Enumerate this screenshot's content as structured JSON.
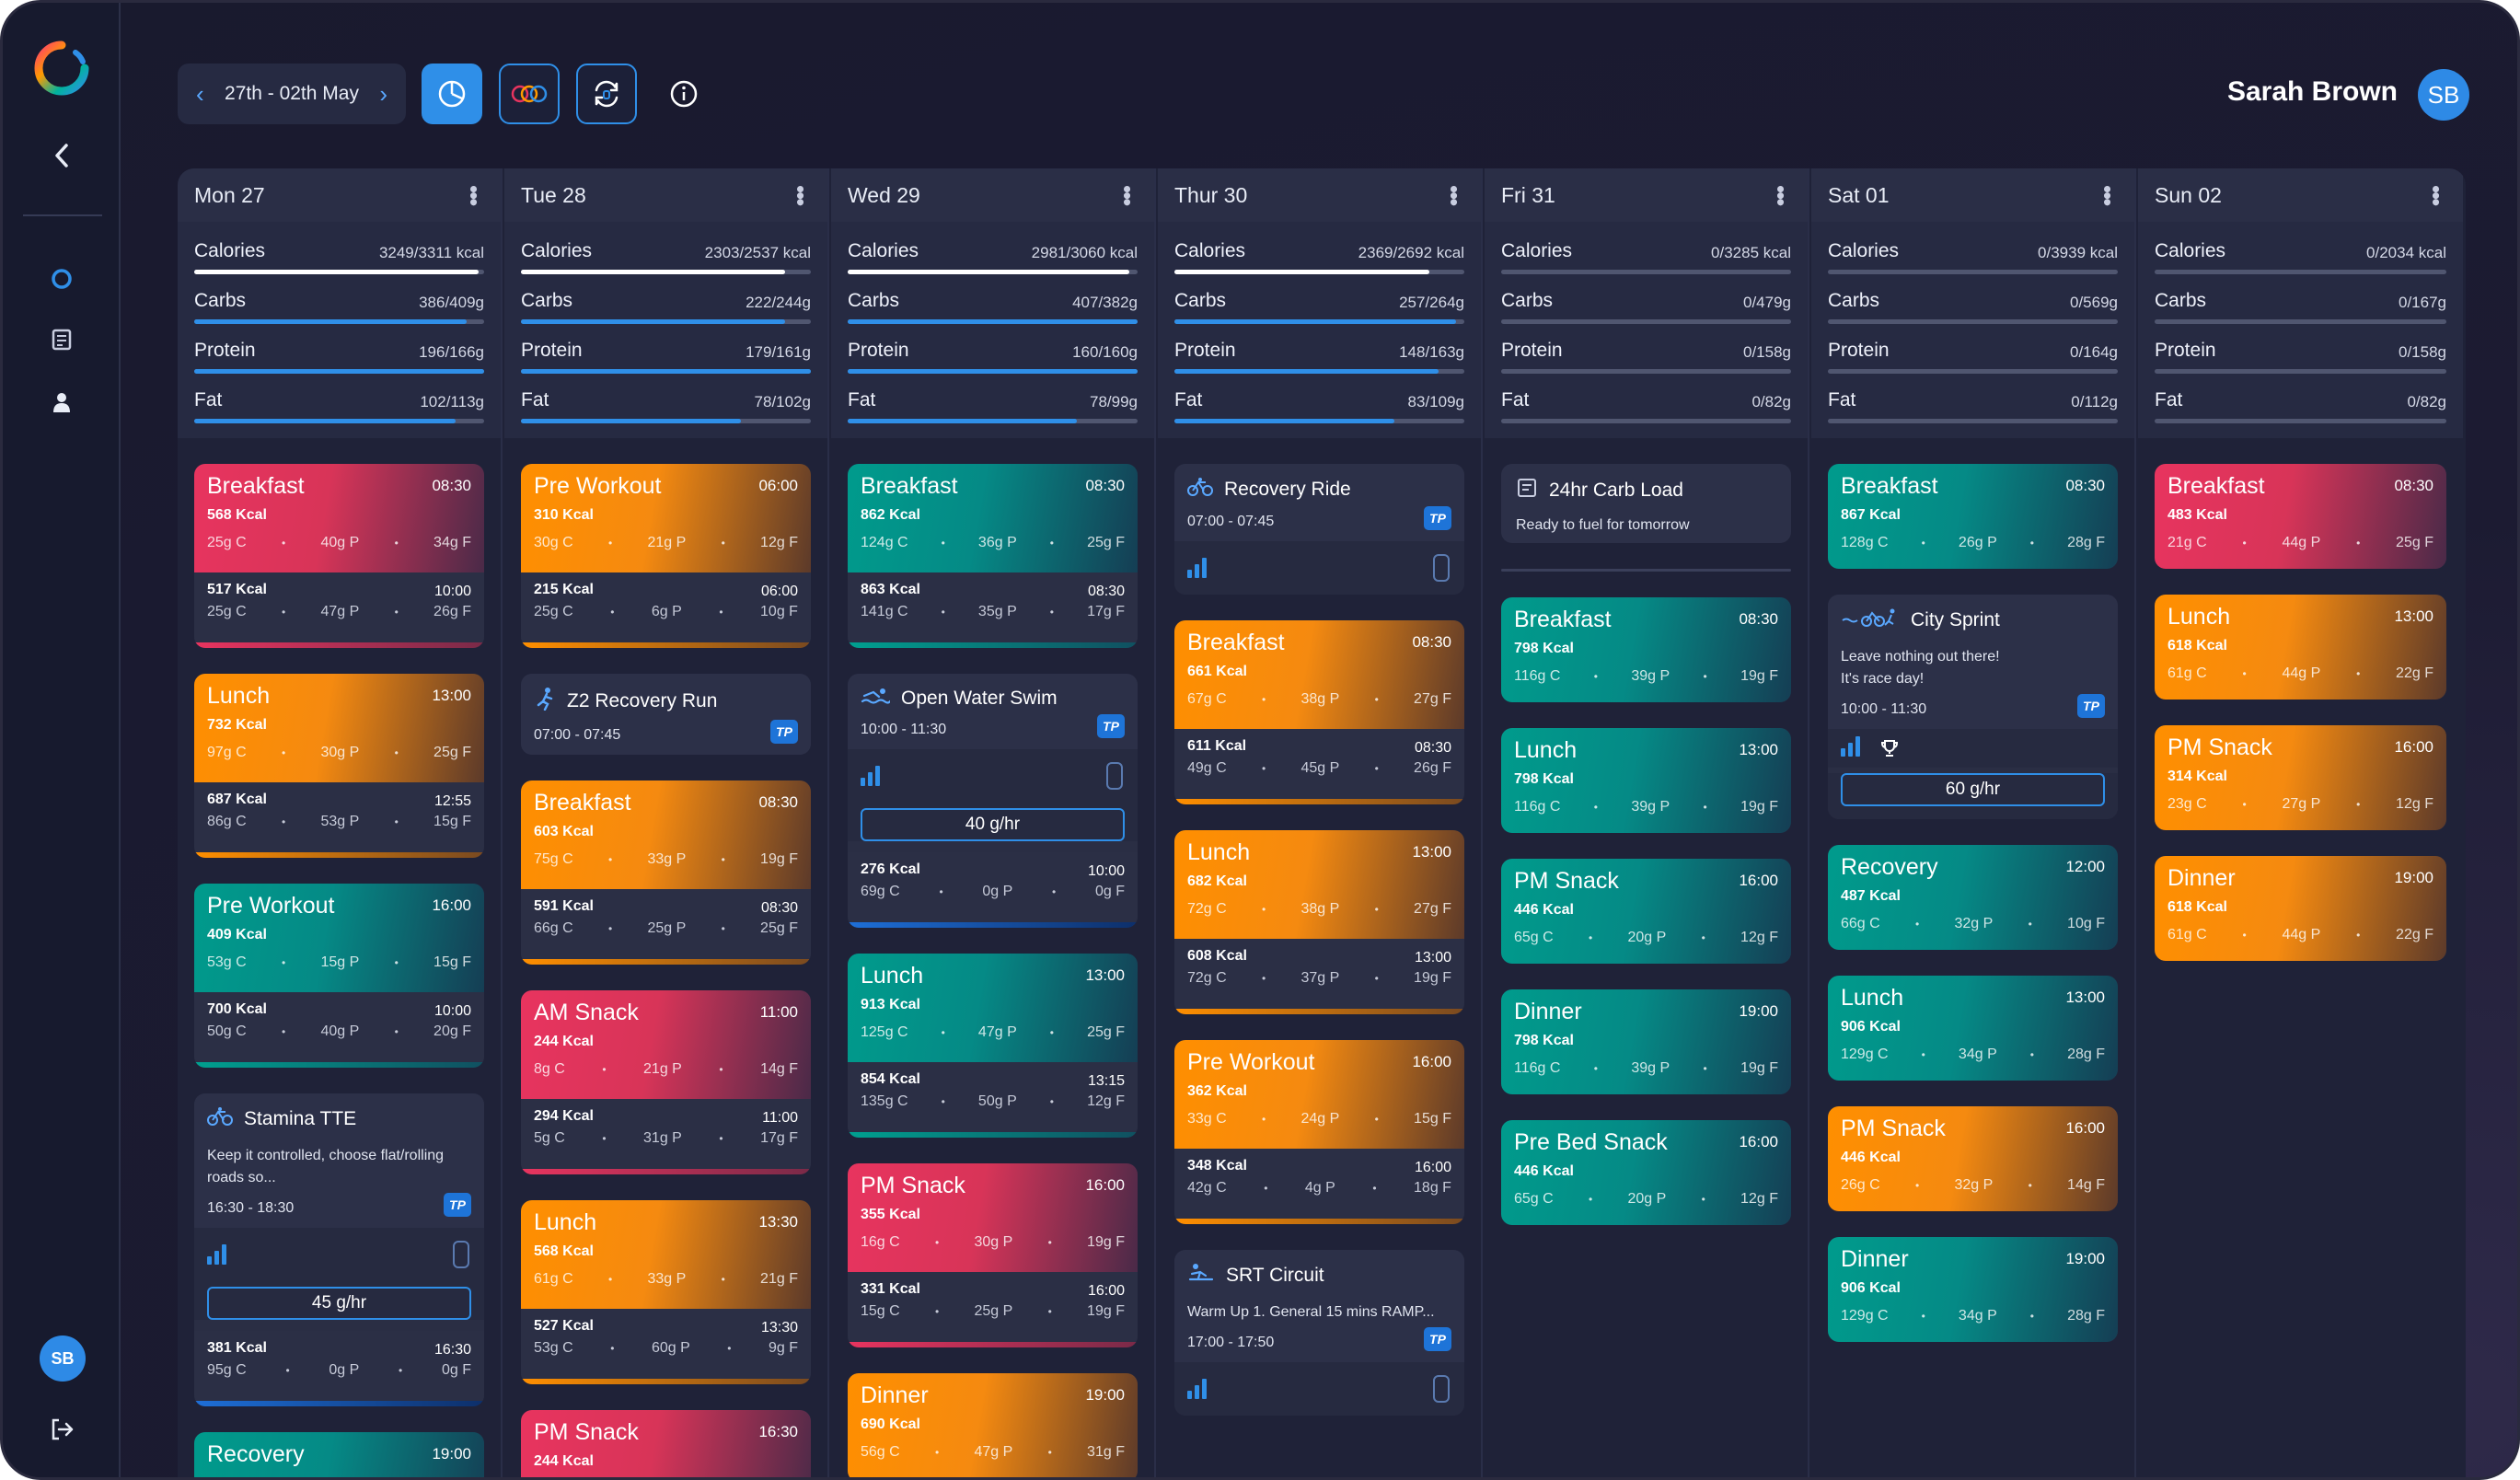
{
  "topbar": {
    "date_range": "27th - 02th May",
    "user_name": "Sarah Brown",
    "user_initials": "SB"
  },
  "sidebar": {
    "avatar_initials": "SB"
  },
  "colors": {
    "accent": "#2f8fe8",
    "red": "#e8345f",
    "orange": "#ff8f00",
    "teal": "#009b8c"
  },
  "days": [
    {
      "title": "Mon 27",
      "stats": [
        {
          "label": "Calories",
          "value": "3249/3311 kcal",
          "pct": 98,
          "color": "white"
        },
        {
          "label": "Carbs",
          "value": "386/409g",
          "pct": 94,
          "color": "blue"
        },
        {
          "label": "Protein",
          "value": "196/166g",
          "pct": 100,
          "color": "blue"
        },
        {
          "label": "Fat",
          "value": "102/113g",
          "pct": 90,
          "color": "blue"
        }
      ],
      "cards": [
        {
          "kind": "meal",
          "color": "red",
          "name": "Breakfast",
          "time": "08:30",
          "kcal": "568 Kcal",
          "c": "25g C",
          "p": "40g P",
          "f": "34g F",
          "kcal2": "517 Kcal",
          "time2": "10:00",
          "c2": "25g C",
          "p2": "47g P",
          "f2": "26g F"
        },
        {
          "kind": "meal",
          "color": "orange",
          "name": "Lunch",
          "time": "13:00",
          "kcal": "732 Kcal",
          "c": "97g C",
          "p": "30g P",
          "f": "25g F",
          "kcal2": "687 Kcal",
          "time2": "12:55",
          "c2": "86g C",
          "p2": "53g P",
          "f2": "15g F"
        },
        {
          "kind": "meal",
          "color": "teal",
          "name": "Pre Workout",
          "time": "16:00",
          "kcal": "409 Kcal",
          "c": "53g C",
          "p": "15g P",
          "f": "15g F",
          "kcal2": "700 Kcal",
          "time2": "10:00",
          "c2": "50g C",
          "p2": "40g P",
          "f2": "20g F"
        },
        {
          "kind": "workout",
          "icon": "bike",
          "title": "Stamina TTE",
          "desc": "Keep it controlled, choose flat/rolling roads so...",
          "time": "16:30 - 18:30",
          "gram": "45 g/hr",
          "kcal2": "381 Kcal",
          "time2": "16:30",
          "c2": "95g C",
          "p2": "0g P",
          "f2": "0g F"
        },
        {
          "kind": "partial",
          "color": "teal",
          "name": "Recovery",
          "time": "19:00"
        }
      ]
    },
    {
      "title": "Tue 28",
      "stats": [
        {
          "label": "Calories",
          "value": "2303/2537 kcal",
          "pct": 91,
          "color": "white"
        },
        {
          "label": "Carbs",
          "value": "222/244g",
          "pct": 91,
          "color": "blue"
        },
        {
          "label": "Protein",
          "value": "179/161g",
          "pct": 100,
          "color": "blue"
        },
        {
          "label": "Fat",
          "value": "78/102g",
          "pct": 76,
          "color": "blue"
        }
      ],
      "cards": [
        {
          "kind": "meal",
          "color": "orange",
          "name": "Pre Workout",
          "time": "06:00",
          "kcal": "310 Kcal",
          "c": "30g C",
          "p": "21g P",
          "f": "12g F",
          "kcal2": "215 Kcal",
          "time2": "06:00",
          "c2": "25g C",
          "p2": "6g P",
          "f2": "10g F"
        },
        {
          "kind": "simple",
          "icon": "run",
          "title": "Z2 Recovery Run",
          "time": "07:00 - 07:45"
        },
        {
          "kind": "meal",
          "color": "orange",
          "name": "Breakfast",
          "time": "08:30",
          "kcal": "603 Kcal",
          "c": "75g C",
          "p": "33g P",
          "f": "19g F",
          "kcal2": "591 Kcal",
          "time2": "08:30",
          "c2": "66g C",
          "p2": "25g P",
          "f2": "25g F"
        },
        {
          "kind": "meal",
          "color": "red",
          "name": "AM Snack",
          "time": "11:00",
          "kcal": "244 Kcal",
          "c": "8g C",
          "p": "21g P",
          "f": "14g F",
          "kcal2": "294 Kcal",
          "time2": "11:00",
          "c2": "5g C",
          "p2": "31g P",
          "f2": "17g F"
        },
        {
          "kind": "meal",
          "color": "orange",
          "name": "Lunch",
          "time": "13:30",
          "kcal": "568 Kcal",
          "c": "61g C",
          "p": "33g P",
          "f": "21g F",
          "kcal2": "527 Kcal",
          "time2": "13:30",
          "c2": "53g C",
          "p2": "60g P",
          "f2": "9g F"
        },
        {
          "kind": "partial",
          "color": "red",
          "name": "PM Snack",
          "time": "16:30",
          "kcal": "244 Kcal"
        }
      ]
    },
    {
      "title": "Wed 29",
      "stats": [
        {
          "label": "Calories",
          "value": "2981/3060 kcal",
          "pct": 97,
          "color": "white"
        },
        {
          "label": "Carbs",
          "value": "407/382g",
          "pct": 100,
          "color": "blue"
        },
        {
          "label": "Protein",
          "value": "160/160g",
          "pct": 100,
          "color": "blue"
        },
        {
          "label": "Fat",
          "value": "78/99g",
          "pct": 79,
          "color": "blue"
        }
      ],
      "cards": [
        {
          "kind": "meal",
          "color": "teal",
          "name": "Breakfast",
          "time": "08:30",
          "kcal": "862 Kcal",
          "c": "124g C",
          "p": "36g P",
          "f": "25g F",
          "kcal2": "863 Kcal",
          "time2": "08:30",
          "c2": "141g C",
          "p2": "35g P",
          "f2": "17g F"
        },
        {
          "kind": "swim",
          "icon": "swim",
          "title": "Open Water Swim",
          "time": "10:00 - 11:30",
          "gram": "40 g/hr",
          "kcal2": "276 Kcal",
          "time2": "10:00",
          "c2": "69g C",
          "p2": "0g P",
          "f2": "0g F"
        },
        {
          "kind": "meal",
          "color": "teal",
          "name": "Lunch",
          "time": "13:00",
          "kcal": "913 Kcal",
          "c": "125g C",
          "p": "47g P",
          "f": "25g F",
          "kcal2": "854 Kcal",
          "time2": "13:15",
          "c2": "135g C",
          "p2": "50g P",
          "f2": "12g F"
        },
        {
          "kind": "meal",
          "color": "red",
          "name": "PM Snack",
          "time": "16:00",
          "kcal": "355 Kcal",
          "c": "16g C",
          "p": "30g P",
          "f": "19g F",
          "kcal2": "331 Kcal",
          "time2": "16:00",
          "c2": "15g C",
          "p2": "25g P",
          "f2": "19g F"
        },
        {
          "kind": "partial3",
          "color": "orange",
          "name": "Dinner",
          "time": "19:00",
          "kcal": "690 Kcal",
          "c": "56g C",
          "p": "47g P",
          "f": "31g F"
        }
      ]
    },
    {
      "title": "Thur 30",
      "stats": [
        {
          "label": "Calories",
          "value": "2369/2692 kcal",
          "pct": 88,
          "color": "white"
        },
        {
          "label": "Carbs",
          "value": "257/264g",
          "pct": 97,
          "color": "blue"
        },
        {
          "label": "Protein",
          "value": "148/163g",
          "pct": 91,
          "color": "blue"
        },
        {
          "label": "Fat",
          "value": "83/109g",
          "pct": 76,
          "color": "blue"
        }
      ],
      "cards": [
        {
          "kind": "bars",
          "icon": "bike",
          "title": "Recovery Ride",
          "time": "07:00 - 07:45"
        },
        {
          "kind": "meal",
          "color": "orange",
          "name": "Breakfast",
          "time": "08:30",
          "kcal": "661 Kcal",
          "c": "67g C",
          "p": "38g P",
          "f": "27g F",
          "kcal2": "611 Kcal",
          "time2": "08:30",
          "c2": "49g C",
          "p2": "45g P",
          "f2": "26g F"
        },
        {
          "kind": "meal",
          "color": "orange",
          "name": "Lunch",
          "time": "13:00",
          "kcal": "682 Kcal",
          "c": "72g C",
          "p": "38g P",
          "f": "27g F",
          "kcal2": "608 Kcal",
          "time2": "13:00",
          "c2": "72g C",
          "p2": "37g P",
          "f2": "19g F"
        },
        {
          "kind": "meal",
          "color": "orange",
          "name": "Pre Workout",
          "time": "16:00",
          "kcal": "362 Kcal",
          "c": "33g C",
          "p": "24g P",
          "f": "15g F",
          "kcal2": "348 Kcal",
          "time2": "16:00",
          "c2": "42g C",
          "p2": "4g P",
          "f2": "18g F"
        },
        {
          "kind": "barsdesc",
          "icon": "strength",
          "title": "SRT Circuit",
          "desc": "Warm Up 1. General 15 mins RAMP...",
          "time": "17:00 - 17:50"
        }
      ]
    },
    {
      "title": "Fri 31",
      "stats": [
        {
          "label": "Calories",
          "value": "0/3285 kcal",
          "pct": 0,
          "color": "white"
        },
        {
          "label": "Carbs",
          "value": "0/479g",
          "pct": 0,
          "color": "blue"
        },
        {
          "label": "Protein",
          "value": "0/158g",
          "pct": 0,
          "color": "blue"
        },
        {
          "label": "Fat",
          "value": "0/82g",
          "pct": 0,
          "color": "blue"
        }
      ],
      "cards": [
        {
          "kind": "info",
          "title": "24hr Carb Load",
          "desc": "Ready to fuel for tomorrow"
        },
        {
          "kind": "sep"
        },
        {
          "kind": "mealonly",
          "color": "teal",
          "name": "Breakfast",
          "time": "08:30",
          "kcal": "798 Kcal",
          "c": "116g C",
          "p": "39g P",
          "f": "19g F"
        },
        {
          "kind": "mealonly",
          "color": "teal",
          "name": "Lunch",
          "time": "13:00",
          "kcal": "798 Kcal",
          "c": "116g C",
          "p": "39g P",
          "f": "19g F"
        },
        {
          "kind": "mealonly",
          "color": "teal",
          "name": "PM Snack",
          "time": "16:00",
          "kcal": "446 Kcal",
          "c": "65g C",
          "p": "20g P",
          "f": "12g F"
        },
        {
          "kind": "mealonly",
          "color": "teal",
          "name": "Dinner",
          "time": "19:00",
          "kcal": "798 Kcal",
          "c": "116g C",
          "p": "39g P",
          "f": "19g F"
        },
        {
          "kind": "mealonly",
          "color": "teal",
          "name": "Pre Bed Snack",
          "time": "16:00",
          "kcal": "446 Kcal",
          "c": "65g C",
          "p": "20g P",
          "f": "12g F"
        }
      ]
    },
    {
      "title": "Sat 01",
      "stats": [
        {
          "label": "Calories",
          "value": "0/3939 kcal",
          "pct": 0,
          "color": "white"
        },
        {
          "label": "Carbs",
          "value": "0/569g",
          "pct": 0,
          "color": "blue"
        },
        {
          "label": "Protein",
          "value": "0/164g",
          "pct": 0,
          "color": "blue"
        },
        {
          "label": "Fat",
          "value": "0/112g",
          "pct": 0,
          "color": "blue"
        }
      ],
      "cards": [
        {
          "kind": "mealonly",
          "color": "teal",
          "name": "Breakfast",
          "time": "08:30",
          "kcal": "867 Kcal",
          "c": "128g C",
          "p": "26g P",
          "f": "28g F"
        },
        {
          "kind": "race",
          "icon": "tri",
          "title": "City Sprint",
          "desc1": "Leave nothing out there!",
          "desc2": "It's race day!",
          "time": "10:00 - 11:30",
          "gram": "60 g/hr"
        },
        {
          "kind": "mealonly",
          "color": "teal",
          "name": "Recovery",
          "time": "12:00",
          "kcal": "487 Kcal",
          "c": "66g C",
          "p": "32g P",
          "f": "10g F"
        },
        {
          "kind": "mealonly",
          "color": "teal",
          "name": "Lunch",
          "time": "13:00",
          "kcal": "906 Kcal",
          "c": "129g C",
          "p": "34g P",
          "f": "28g F"
        },
        {
          "kind": "mealonly",
          "color": "orange",
          "name": "PM Snack",
          "time": "16:00",
          "kcal": "446 Kcal",
          "c": "26g C",
          "p": "32g P",
          "f": "14g F"
        },
        {
          "kind": "mealonly",
          "color": "teal",
          "name": "Dinner",
          "time": "19:00",
          "kcal": "906 Kcal",
          "c": "129g C",
          "p": "34g P",
          "f": "28g F"
        }
      ]
    },
    {
      "title": "Sun 02",
      "stats": [
        {
          "label": "Calories",
          "value": "0/2034 kcal",
          "pct": 0,
          "color": "white"
        },
        {
          "label": "Carbs",
          "value": "0/167g",
          "pct": 0,
          "color": "blue"
        },
        {
          "label": "Protein",
          "value": "0/158g",
          "pct": 0,
          "color": "blue"
        },
        {
          "label": "Fat",
          "value": "0/82g",
          "pct": 0,
          "color": "blue"
        }
      ],
      "cards": [
        {
          "kind": "mealonly",
          "color": "red",
          "name": "Breakfast",
          "time": "08:30",
          "kcal": "483 Kcal",
          "c": "21g C",
          "p": "44g P",
          "f": "25g F"
        },
        {
          "kind": "mealonly",
          "color": "orange",
          "name": "Lunch",
          "time": "13:00",
          "kcal": "618 Kcal",
          "c": "61g C",
          "p": "44g P",
          "f": "22g F"
        },
        {
          "kind": "mealonly",
          "color": "orange",
          "name": "PM Snack",
          "time": "16:00",
          "kcal": "314 Kcal",
          "c": "23g C",
          "p": "27g P",
          "f": "12g F"
        },
        {
          "kind": "mealonly",
          "color": "orange",
          "name": "Dinner",
          "time": "19:00",
          "kcal": "618 Kcal",
          "c": "61g C",
          "p": "44g P",
          "f": "22g F"
        }
      ]
    }
  ],
  "icons": {
    "logo": "ring-logo",
    "back": "chevron-left-icon",
    "nav1": "circle-icon",
    "nav2": "document-icon",
    "nav3": "user-icon",
    "logout": "logout-icon",
    "pie": "pie-chart-icon",
    "rings": "rings-icon",
    "sync": "sync-icon",
    "info": "info-icon"
  }
}
